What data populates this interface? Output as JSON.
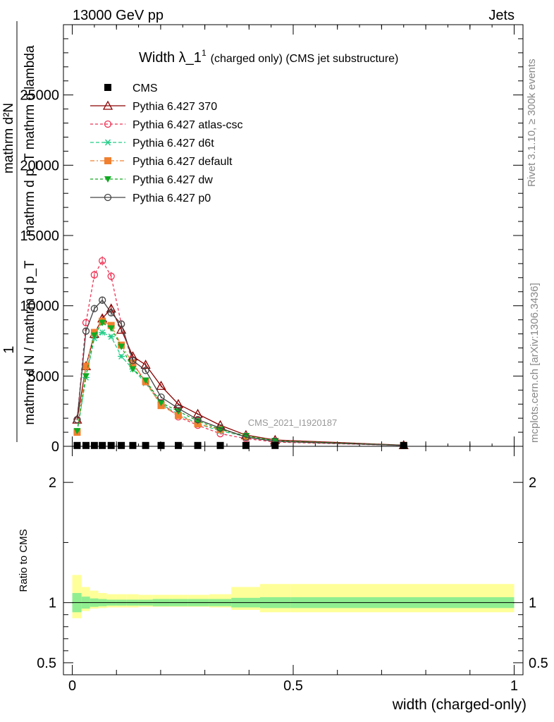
{
  "header": {
    "left": "13000 GeV pp",
    "right": "Jets"
  },
  "side_text": {
    "rivet": "Rivet 3.1.10, ≥ 300k events",
    "mcplots": "mcplots.cern.ch [arXiv:1306.3436]"
  },
  "watermark": "CMS_2021_I1920187",
  "colors": {
    "CMS": "#000000",
    "Pythia 6.427 370": "#8b0000",
    "Pythia 6.427 atlas-csc": "#ee3355",
    "Pythia 6.427 d6t": "#22cc88",
    "Pythia 6.427 default": "#f08030",
    "Pythia 6.427 dw": "#11aa22",
    "Pythia 6.427 p0": "#444444",
    "band_inner": "#90ee90",
    "band_outer": "#ffff99"
  },
  "chart_data": [
    {
      "type": "line",
      "title": "Width λ_1",
      "title_superscript": "1",
      "subtitle": "(charged only) (CMS jet substructure)",
      "ylabel_numerator": "mathrm d²N",
      "ylabel_numerator_2": "mathrm d p_T mathrm d lambda",
      "ylabel_prefix": "1",
      "ylabel_denominator": "mathrm d N / mathrm d p_T",
      "xlim": [
        -0.02,
        1.02
      ],
      "ylim": [
        0,
        30000
      ],
      "y_ticks": [
        0,
        5000,
        10000,
        15000,
        20000,
        25000
      ],
      "y_tick_labels": [
        "0",
        "5000",
        "10000",
        "15000",
        "20000",
        "25000"
      ],
      "legend_position": "top-left",
      "x": [
        0.011,
        0.031,
        0.05,
        0.068,
        0.088,
        0.111,
        0.137,
        0.166,
        0.201,
        0.24,
        0.284,
        0.335,
        0.393,
        0.459,
        0.75
      ],
      "series": [
        {
          "name": "CMS",
          "marker": "square",
          "values": [
            60,
            60,
            60,
            60,
            60,
            60,
            60,
            60,
            60,
            60,
            60,
            60,
            60,
            60,
            60
          ]
        },
        {
          "name": "Pythia 6.427 370",
          "marker": "triangle-open",
          "values": [
            1900,
            5700,
            8000,
            9100,
            9800,
            8300,
            6400,
            5800,
            4300,
            3000,
            2300,
            1500,
            800,
            450,
            80
          ]
        },
        {
          "name": "Pythia 6.427 atlas-csc",
          "marker": "circle-open",
          "values": [
            1900,
            8800,
            12200,
            13200,
            12100,
            8700,
            5900,
            4600,
            3100,
            2100,
            1500,
            900,
            550,
            300,
            60
          ]
        },
        {
          "name": "Pythia 6.427 d6t",
          "marker": "star",
          "values": [
            1000,
            4900,
            7700,
            8100,
            7800,
            6400,
            5500,
            4500,
            3000,
            2300,
            1600,
            1100,
            700,
            350,
            60
          ]
        },
        {
          "name": "Pythia 6.427 default",
          "marker": "square",
          "values": [
            1000,
            5700,
            8100,
            8900,
            8600,
            7200,
            5900,
            4600,
            2900,
            2200,
            1600,
            1200,
            700,
            350,
            60
          ]
        },
        {
          "name": "Pythia 6.427 dw",
          "marker": "triangle-down",
          "values": [
            1100,
            5000,
            7900,
            8800,
            8400,
            7100,
            5500,
            4700,
            3100,
            2500,
            1800,
            1200,
            750,
            400,
            70
          ]
        },
        {
          "name": "Pythia 6.427 p0",
          "marker": "circle-open",
          "values": [
            1900,
            8200,
            9800,
            10400,
            9500,
            8700,
            6100,
            5400,
            3500,
            2700,
            1900,
            1300,
            650,
            350,
            60
          ]
        }
      ]
    },
    {
      "type": "area",
      "ylabel": "Ratio to CMS",
      "xlabel": "width (charged-only)",
      "xlim": [
        -0.02,
        1.02
      ],
      "ylim": [
        0.4,
        2.3
      ],
      "y_ticks": [
        0.5,
        1,
        2
      ],
      "y_tick_labels": [
        "0.5",
        "1",
        "2"
      ],
      "x_ticks": [
        0,
        0.5,
        1
      ],
      "x_tick_labels": [
        "0",
        "0.5",
        "1"
      ],
      "bin_edges": [
        0.0,
        0.021,
        0.04,
        0.059,
        0.078,
        0.099,
        0.123,
        0.15,
        0.182,
        0.22,
        0.262,
        0.31,
        0.36,
        0.425,
        0.495,
        1.0
      ],
      "band_inner": [
        [
          0.92,
          1.08
        ],
        [
          0.95,
          1.05
        ],
        [
          0.965,
          1.035
        ],
        [
          0.97,
          1.03
        ],
        [
          0.975,
          1.025
        ],
        [
          0.975,
          1.025
        ],
        [
          0.975,
          1.025
        ],
        [
          0.975,
          1.025
        ],
        [
          0.97,
          1.03
        ],
        [
          0.97,
          1.03
        ],
        [
          0.97,
          1.03
        ],
        [
          0.97,
          1.03
        ],
        [
          0.96,
          1.04
        ],
        [
          0.955,
          1.045
        ],
        [
          0.955,
          1.045
        ]
      ],
      "band_outer": [
        [
          0.87,
          1.23
        ],
        [
          0.93,
          1.13
        ],
        [
          0.95,
          1.1
        ],
        [
          0.955,
          1.08
        ],
        [
          0.96,
          1.07
        ],
        [
          0.96,
          1.07
        ],
        [
          0.96,
          1.07
        ],
        [
          0.965,
          1.065
        ],
        [
          0.965,
          1.065
        ],
        [
          0.965,
          1.065
        ],
        [
          0.965,
          1.065
        ],
        [
          0.96,
          1.07
        ],
        [
          0.94,
          1.13
        ],
        [
          0.92,
          1.155
        ],
        [
          0.92,
          1.155
        ]
      ],
      "reference": 1
    }
  ]
}
